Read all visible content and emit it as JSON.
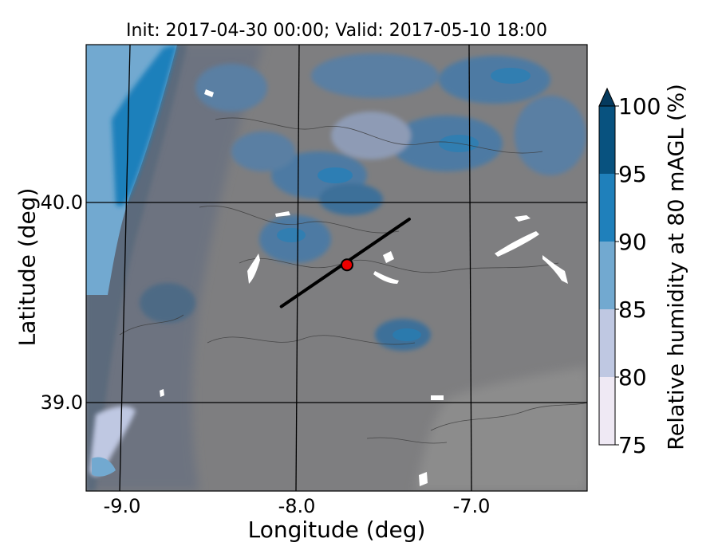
{
  "chart_data": {
    "type": "heatmap",
    "title": "Init: 2017-04-30 00:00; Valid: 2017-05-10 18:00",
    "xlabel": "Longitude (deg)",
    "ylabel": "Latitude (deg)",
    "xlim": [
      -9.25,
      -6.35
    ],
    "ylim": [
      38.55,
      40.8
    ],
    "x_ticks": [
      {
        "value": -9.0,
        "label": "-9.0"
      },
      {
        "value": -8.0,
        "label": "-8.0"
      },
      {
        "value": -7.0,
        "label": "-7.0"
      }
    ],
    "y_ticks": [
      {
        "value": 40.0,
        "label": "40.0"
      },
      {
        "value": 39.0,
        "label": "39.0"
      }
    ],
    "colorbar": {
      "label": "Relative humidity at 80 mAGL (%)",
      "levels": [
        75,
        80,
        85,
        90,
        95,
        100
      ],
      "level_labels": [
        "75",
        "80",
        "85",
        "90",
        "95",
        "100"
      ],
      "colors": [
        "#efe9f4",
        "#bfc8e2",
        "#72a9d0",
        "#1f80bb",
        "#08527f"
      ],
      "extend": "max",
      "below_range_color": "#7d7d7d"
    },
    "cross_section": {
      "start": {
        "lon": -8.12,
        "lat": 39.48
      },
      "end": {
        "lon": -7.38,
        "lat": 39.92
      },
      "color": "#000000"
    },
    "site": {
      "lon": -7.74,
      "lat": 39.69,
      "color": "#ee0000"
    },
    "grid": true
  }
}
